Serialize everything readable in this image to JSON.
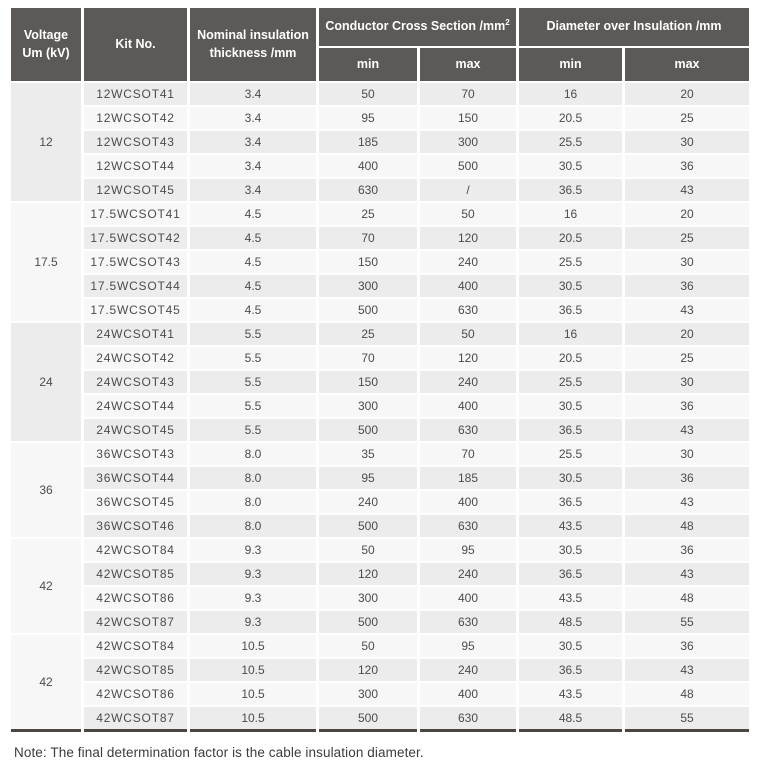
{
  "colors": {
    "header_bg": "#5c5957",
    "header_text": "#ffffff",
    "row_shaded": "#ececec",
    "row_light": "#f7f7f8",
    "body_text": "#4c4c4c",
    "bottom_border": "#4b4642"
  },
  "table": {
    "headers": {
      "voltage_line1": "Voltage",
      "voltage_line2": "Um (kV)",
      "kit": "Kit No.",
      "nominal_line1": "Nominal insulation",
      "nominal_line2": "thickness /mm",
      "conductor": "Conductor Cross Section /mm",
      "conductor_sup": "2",
      "diameter": "Diameter over Insulation /mm",
      "min": "min",
      "max": "max"
    },
    "groups": [
      {
        "voltage": "12",
        "rows": [
          {
            "kit": "12WCSOT41",
            "thickness": "3.4",
            "conductor_min": "50",
            "conductor_max": "70",
            "diameter_min": "16",
            "diameter_max": "20"
          },
          {
            "kit": "12WCSOT42",
            "thickness": "3.4",
            "conductor_min": "95",
            "conductor_max": "150",
            "diameter_min": "20.5",
            "diameter_max": "25"
          },
          {
            "kit": "12WCSOT43",
            "thickness": "3.4",
            "conductor_min": "185",
            "conductor_max": "300",
            "diameter_min": "25.5",
            "diameter_max": "30"
          },
          {
            "kit": "12WCSOT44",
            "thickness": "3.4",
            "conductor_min": "400",
            "conductor_max": "500",
            "diameter_min": "30.5",
            "diameter_max": "36"
          },
          {
            "kit": "12WCSOT45",
            "thickness": "3.4",
            "conductor_min": "630",
            "conductor_max": "/",
            "diameter_min": "36.5",
            "diameter_max": "43"
          }
        ]
      },
      {
        "voltage": "17.5",
        "rows": [
          {
            "kit": "17.5WCSOT41",
            "thickness": "4.5",
            "conductor_min": "25",
            "conductor_max": "50",
            "diameter_min": "16",
            "diameter_max": "20"
          },
          {
            "kit": "17.5WCSOT42",
            "thickness": "4.5",
            "conductor_min": "70",
            "conductor_max": "120",
            "diameter_min": "20.5",
            "diameter_max": "25"
          },
          {
            "kit": "17.5WCSOT43",
            "thickness": "4.5",
            "conductor_min": "150",
            "conductor_max": "240",
            "diameter_min": "25.5",
            "diameter_max": "30"
          },
          {
            "kit": "17.5WCSOT44",
            "thickness": "4.5",
            "conductor_min": "300",
            "conductor_max": "400",
            "diameter_min": "30.5",
            "diameter_max": "36"
          },
          {
            "kit": "17.5WCSOT45",
            "thickness": "4.5",
            "conductor_min": "500",
            "conductor_max": "630",
            "diameter_min": "36.5",
            "diameter_max": "43"
          }
        ]
      },
      {
        "voltage": "24",
        "rows": [
          {
            "kit": "24WCSOT41",
            "thickness": "5.5",
            "conductor_min": "25",
            "conductor_max": "50",
            "diameter_min": "16",
            "diameter_max": "20"
          },
          {
            "kit": "24WCSOT42",
            "thickness": "5.5",
            "conductor_min": "70",
            "conductor_max": "120",
            "diameter_min": "20.5",
            "diameter_max": "25"
          },
          {
            "kit": "24WCSOT43",
            "thickness": "5.5",
            "conductor_min": "150",
            "conductor_max": "240",
            "diameter_min": "25.5",
            "diameter_max": "30"
          },
          {
            "kit": "24WCSOT44",
            "thickness": "5.5",
            "conductor_min": "300",
            "conductor_max": "400",
            "diameter_min": "30.5",
            "diameter_max": "36"
          },
          {
            "kit": "24WCSOT45",
            "thickness": "5.5",
            "conductor_min": "500",
            "conductor_max": "630",
            "diameter_min": "36.5",
            "diameter_max": "43"
          }
        ]
      },
      {
        "voltage": "36",
        "rows": [
          {
            "kit": "36WCSOT43",
            "thickness": "8.0",
            "conductor_min": "35",
            "conductor_max": "70",
            "diameter_min": "25.5",
            "diameter_max": "30"
          },
          {
            "kit": "36WCSOT44",
            "thickness": "8.0",
            "conductor_min": "95",
            "conductor_max": "185",
            "diameter_min": "30.5",
            "diameter_max": "36"
          },
          {
            "kit": "36WCSOT45",
            "thickness": "8.0",
            "conductor_min": "240",
            "conductor_max": "400",
            "diameter_min": "36.5",
            "diameter_max": "43"
          },
          {
            "kit": "36WCSOT46",
            "thickness": "8.0",
            "conductor_min": "500",
            "conductor_max": "630",
            "diameter_min": "43.5",
            "diameter_max": "48"
          }
        ]
      },
      {
        "voltage": "42",
        "rows": [
          {
            "kit": "42WCSOT84",
            "thickness": "9.3",
            "conductor_min": "50",
            "conductor_max": "95",
            "diameter_min": "30.5",
            "diameter_max": "36"
          },
          {
            "kit": "42WCSOT85",
            "thickness": "9.3",
            "conductor_min": "120",
            "conductor_max": "240",
            "diameter_min": "36.5",
            "diameter_max": "43"
          },
          {
            "kit": "42WCSOT86",
            "thickness": "9.3",
            "conductor_min": "300",
            "conductor_max": "400",
            "diameter_min": "43.5",
            "diameter_max": "48"
          },
          {
            "kit": "42WCSOT87",
            "thickness": "9.3",
            "conductor_min": "500",
            "conductor_max": "630",
            "diameter_min": "48.5",
            "diameter_max": "55"
          }
        ]
      },
      {
        "voltage": "42",
        "rows": [
          {
            "kit": "42WCSOT84",
            "thickness": "10.5",
            "conductor_min": "50",
            "conductor_max": "95",
            "diameter_min": "30.5",
            "diameter_max": "36"
          },
          {
            "kit": "42WCSOT85",
            "thickness": "10.5",
            "conductor_min": "120",
            "conductor_max": "240",
            "diameter_min": "36.5",
            "diameter_max": "43"
          },
          {
            "kit": "42WCSOT86",
            "thickness": "10.5",
            "conductor_min": "300",
            "conductor_max": "400",
            "diameter_min": "43.5",
            "diameter_max": "48"
          },
          {
            "kit": "42WCSOT87",
            "thickness": "10.5",
            "conductor_min": "500",
            "conductor_max": "630",
            "diameter_min": "48.5",
            "diameter_max": "55"
          }
        ]
      }
    ]
  },
  "note": "Note: The final determination factor is the cable insulation diameter."
}
